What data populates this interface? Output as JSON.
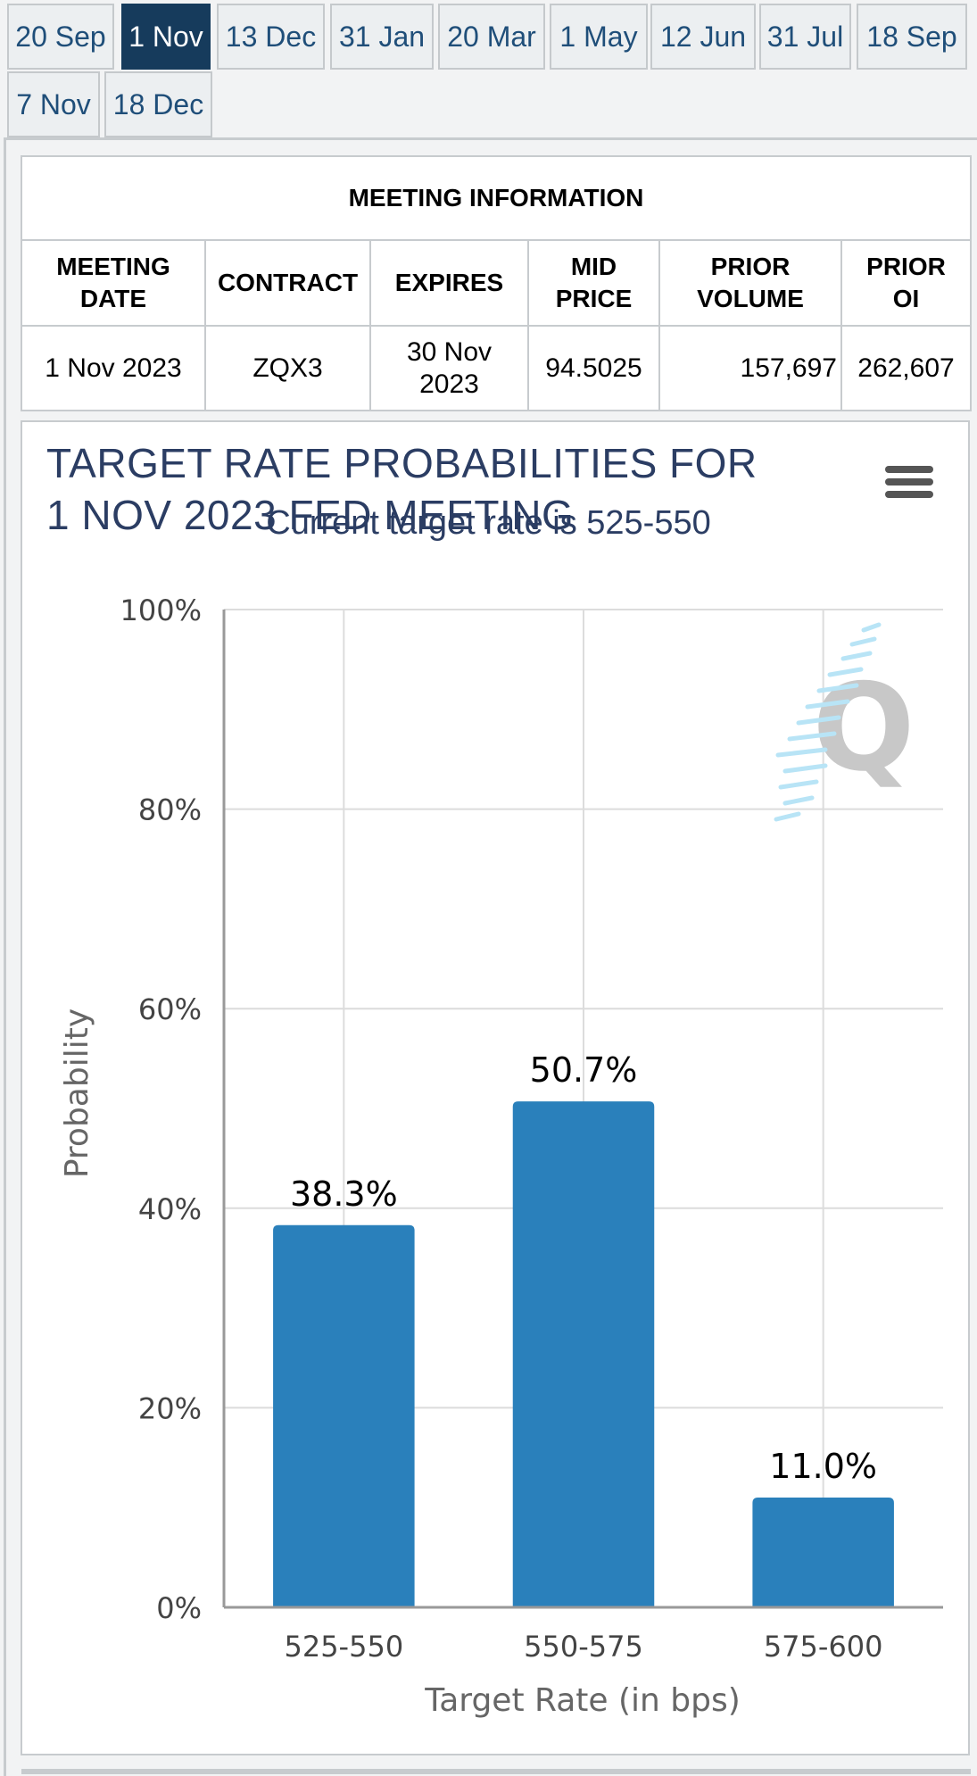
{
  "tabs": [
    "20 Sep",
    "1 Nov",
    "13 Dec",
    "31 Jan",
    "20 Mar",
    "1 May",
    "12 Jun",
    "31 Jul",
    "18 Sep",
    "7 Nov",
    "18 Dec"
  ],
  "active_tab": "1 Nov",
  "meeting_info": {
    "title": "MEETING INFORMATION",
    "headers": [
      [
        "MEETING",
        "DATE"
      ],
      [
        "CONTRACT"
      ],
      [
        "EXPIRES"
      ],
      [
        "MID",
        "PRICE"
      ],
      [
        "PRIOR",
        "VOLUME"
      ],
      [
        "PRIOR",
        "OI"
      ]
    ],
    "row": {
      "meeting_date": "1 Nov 2023",
      "contract": "ZQX3",
      "expires_line1": "30 Nov",
      "expires_line2": "2023",
      "mid_price": "94.5025",
      "prior_volume": "157,697",
      "prior_oi": "262,607"
    }
  },
  "chart": {
    "title_line1": "TARGET RATE PROBABILITIES FOR",
    "title_line2": "1 NOV 2023 FED MEETING",
    "subtitle": "Current target rate is 525-550",
    "menu_icon": "hamburger-menu-icon",
    "watermark_icon": "q-logo-icon"
  },
  "chart_data": {
    "type": "bar",
    "categories": [
      "525-550",
      "550-575",
      "575-600"
    ],
    "values": [
      38.3,
      50.7,
      11.0
    ],
    "value_labels": [
      "38.3%",
      "50.7%",
      "11.0%"
    ],
    "xlabel": "Target Rate (in bps)",
    "ylabel": "Probability",
    "ylim": [
      0,
      100
    ],
    "yticks": [
      "0%",
      "20%",
      "40%",
      "60%",
      "80%",
      "100%"
    ],
    "grid": true,
    "bar_color": "#2a80bb"
  }
}
